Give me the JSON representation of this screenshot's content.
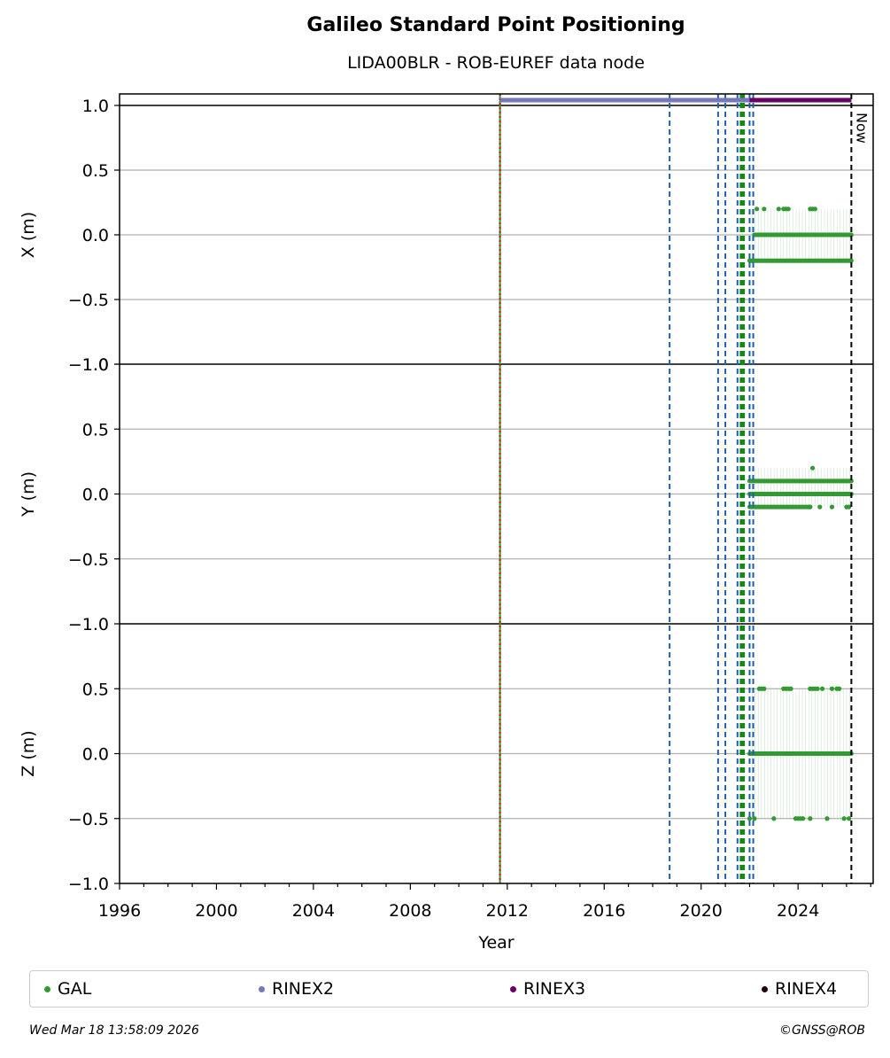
{
  "title": "Galileo Standard Point Positioning",
  "subtitle": "LIDA00BLR - ROB-EUREF data node",
  "now_label": "Now",
  "footer": {
    "timestamp": "Wed Mar 18 13:58:09 2026",
    "credit": "©GNSS@ROB"
  },
  "colors": {
    "gal": "#339933",
    "rinex2": "#7777bb",
    "rinex3": "#660066",
    "rinex4": "#220011",
    "blue_dashed": "#1f5fa8",
    "green_dashed": "#118811",
    "red_dotted": "#dd0000",
    "grid": "#b0b0b0"
  },
  "chart_data": {
    "type": "scatter",
    "xlabel": "Year",
    "x_ticks": [
      "1996",
      "2000",
      "2004",
      "2008",
      "2012",
      "2016",
      "2020",
      "2024"
    ],
    "xlim": [
      1996,
      2027.1
    ],
    "panels": [
      {
        "ylabel": "X (m)",
        "ylim": [
          -1.0,
          1.0
        ],
        "y_ticks": [
          "1.0",
          "0.5",
          "0.0",
          "−0.5",
          "−1.0"
        ],
        "levels": [
          {
            "y": 0.0,
            "x_start": 2022.2,
            "x_end": 2026.2
          },
          {
            "y": -0.2,
            "x_start": 2022.0,
            "x_end": 2026.2
          }
        ],
        "scattered": [
          [
            2022.3,
            0.2
          ],
          [
            2022.6,
            0.2
          ],
          [
            2023.2,
            0.2
          ],
          [
            2023.4,
            0.2
          ],
          [
            2023.5,
            0.2
          ],
          [
            2023.6,
            0.2
          ],
          [
            2024.5,
            0.2
          ],
          [
            2024.6,
            0.2
          ],
          [
            2024.7,
            0.2
          ]
        ]
      },
      {
        "ylabel": "Y (m)",
        "ylim": [
          -1.0,
          1.0
        ],
        "y_ticks": [
          "1.0",
          "0.5",
          "0.0",
          "−0.5",
          "−1.0"
        ],
        "levels": [
          {
            "y": 0.1,
            "x_start": 2022.0,
            "x_end": 2026.2
          },
          {
            "y": 0.0,
            "x_start": 2022.0,
            "x_end": 2026.2
          },
          {
            "y": -0.1,
            "x_start": 2022.0,
            "x_end": 2024.5
          }
        ],
        "scattered": [
          [
            2024.6,
            0.2
          ],
          [
            2024.5,
            -0.1
          ],
          [
            2024.9,
            -0.1
          ],
          [
            2025.4,
            -0.1
          ],
          [
            2026.0,
            -0.1
          ],
          [
            2026.1,
            -0.1
          ]
        ]
      },
      {
        "ylabel": "Z (m)",
        "ylim": [
          -1.0,
          1.0
        ],
        "y_ticks": [
          "0.5",
          "0.0",
          "−0.5",
          "−1.0"
        ],
        "levels": [
          {
            "y": 0.0,
            "x_start": 2022.0,
            "x_end": 2026.2
          }
        ],
        "scattered": [
          [
            2022.0,
            -0.5
          ],
          [
            2022.2,
            -0.5
          ],
          [
            2022.4,
            0.5
          ],
          [
            2022.5,
            0.5
          ],
          [
            2022.6,
            0.5
          ],
          [
            2023.0,
            -0.5
          ],
          [
            2023.4,
            0.5
          ],
          [
            2023.5,
            0.5
          ],
          [
            2023.6,
            0.5
          ],
          [
            2023.7,
            0.5
          ],
          [
            2023.9,
            -0.5
          ],
          [
            2024.0,
            -0.5
          ],
          [
            2024.1,
            -0.5
          ],
          [
            2024.2,
            -0.5
          ],
          [
            2024.5,
            0.5
          ],
          [
            2024.6,
            0.5
          ],
          [
            2024.7,
            0.5
          ],
          [
            2024.8,
            0.5
          ],
          [
            2024.5,
            -0.5
          ],
          [
            2025.0,
            0.5
          ],
          [
            2025.2,
            -0.5
          ],
          [
            2025.4,
            0.5
          ],
          [
            2025.6,
            0.5
          ],
          [
            2025.7,
            0.5
          ],
          [
            2025.9,
            -0.5
          ],
          [
            2026.1,
            -0.5
          ]
        ]
      }
    ],
    "data_bars": [
      {
        "name": "RINEX2",
        "x_start": 2011.7,
        "x_end": 2022.1
      },
      {
        "name": "RINEX3",
        "x_start": 2022.0,
        "x_end": 2026.2
      }
    ],
    "vlines": [
      {
        "x": 2011.7,
        "style": "red-dotted-green"
      },
      {
        "x": 2018.7,
        "style": "blue-dashed"
      },
      {
        "x": 2020.7,
        "style": "blue-dashed"
      },
      {
        "x": 2021.0,
        "style": "blue-dashed"
      },
      {
        "x": 2021.5,
        "style": "blue-dashed"
      },
      {
        "x": 2021.65,
        "style": "green-dashed"
      },
      {
        "x": 2021.75,
        "style": "green-dashed"
      },
      {
        "x": 2022.0,
        "style": "blue-dashed"
      },
      {
        "x": 2022.15,
        "style": "blue-dashed"
      },
      {
        "x": 2026.2,
        "style": "black-dashed-now"
      }
    ],
    "legend": [
      {
        "label": "GAL",
        "color": "#339933"
      },
      {
        "label": "RINEX2",
        "color": "#7777bb"
      },
      {
        "label": "RINEX3",
        "color": "#660066"
      },
      {
        "label": "RINEX4",
        "color": "#220011"
      }
    ]
  }
}
